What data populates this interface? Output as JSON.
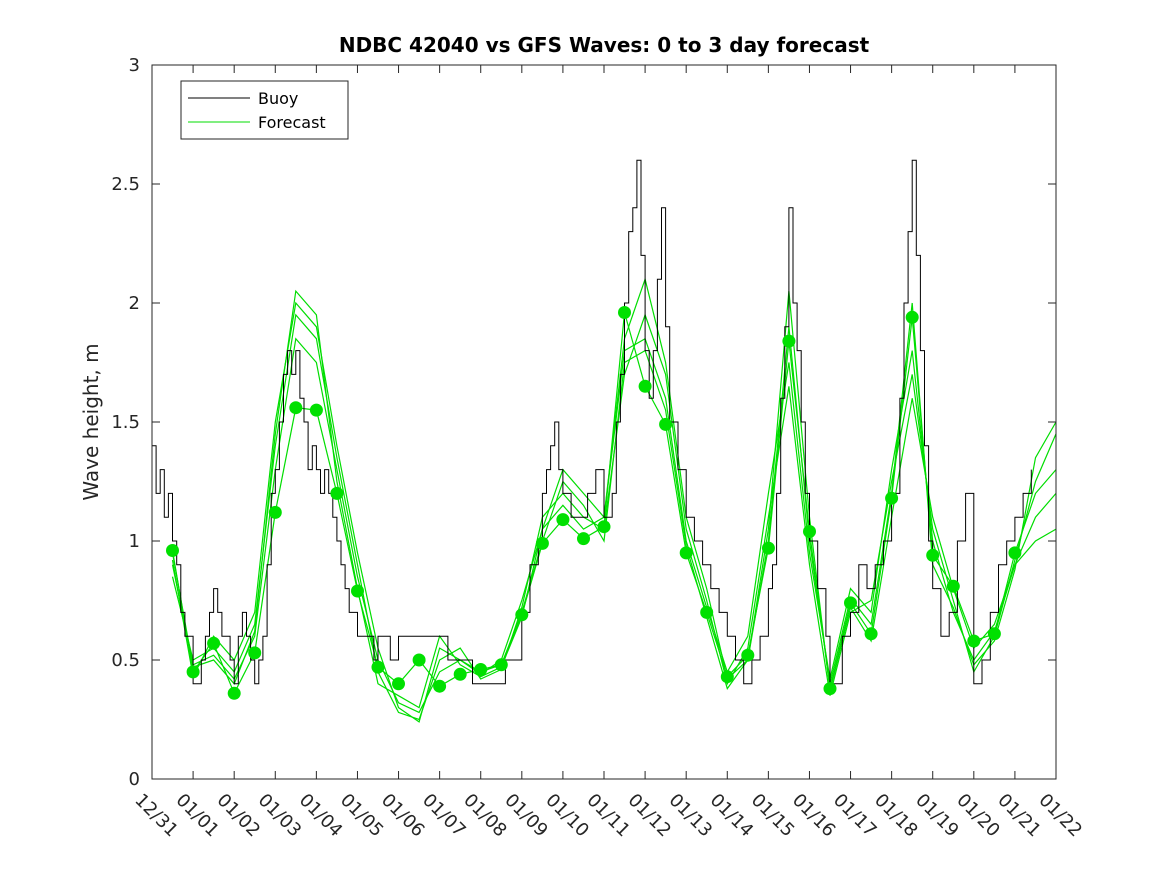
{
  "chart_data": {
    "type": "line",
    "title": "NDBC 42040 vs GFS Waves: 0 to 3 day forecast",
    "xlabel": "",
    "ylabel": "Wave height, m",
    "xlim": [
      0,
      22
    ],
    "ylim": [
      0,
      3
    ],
    "x_tick_labels": [
      "12/31",
      "01/01",
      "01/02",
      "01/03",
      "01/04",
      "01/05",
      "01/06",
      "01/07",
      "01/08",
      "01/09",
      "01/10",
      "01/11",
      "01/12",
      "01/13",
      "01/14",
      "01/15",
      "01/16",
      "01/17",
      "01/18",
      "01/19",
      "01/20",
      "01/21",
      "01/22"
    ],
    "y_ticks": [
      0,
      0.5,
      1,
      1.5,
      2,
      2.5,
      3
    ],
    "y_tick_labels": [
      "0",
      "0.5",
      "1",
      "1.5",
      "2",
      "2.5",
      "3"
    ],
    "legend": {
      "position": "top-left",
      "entries": [
        {
          "name": "Buoy",
          "color": "#000000"
        },
        {
          "name": "Forecast",
          "color": "#00dd00"
        }
      ]
    },
    "buoy_series": {
      "name": "Buoy",
      "color": "#000000",
      "x": [
        0,
        0.1,
        0.2,
        0.3,
        0.4,
        0.5,
        0.6,
        0.7,
        0.8,
        1.0,
        1.1,
        1.2,
        1.3,
        1.4,
        1.5,
        1.6,
        1.7,
        1.8,
        1.9,
        2.0,
        2.1,
        2.2,
        2.3,
        2.4,
        2.5,
        2.6,
        2.7,
        2.8,
        2.9,
        3.0,
        3.1,
        3.2,
        3.3,
        3.4,
        3.5,
        3.6,
        3.7,
        3.8,
        3.9,
        4.0,
        4.1,
        4.2,
        4.3,
        4.4,
        4.5,
        4.6,
        4.7,
        4.8,
        4.9,
        5.0,
        5.2,
        5.4,
        5.5,
        5.8,
        6.0,
        6.2,
        6.4,
        6.6,
        6.8,
        7.0,
        7.2,
        7.4,
        7.6,
        7.8,
        8.0,
        8.2,
        8.4,
        8.6,
        8.8,
        9.0,
        9.2,
        9.4,
        9.5,
        9.6,
        9.7,
        9.8,
        9.9,
        10.0,
        10.2,
        10.4,
        10.6,
        10.8,
        11.0,
        11.2,
        11.3,
        11.4,
        11.5,
        11.6,
        11.7,
        11.8,
        11.9,
        12.0,
        12.1,
        12.2,
        12.3,
        12.4,
        12.5,
        12.6,
        12.8,
        13.0,
        13.2,
        13.4,
        13.6,
        13.8,
        14.0,
        14.2,
        14.4,
        14.6,
        14.8,
        15.0,
        15.1,
        15.2,
        15.3,
        15.4,
        15.5,
        15.6,
        15.7,
        15.8,
        15.9,
        16.0,
        16.2,
        16.4,
        16.5,
        16.6,
        16.8,
        17.0,
        17.2,
        17.4,
        17.6,
        17.8,
        18.0,
        18.2,
        18.3,
        18.4,
        18.5,
        18.6,
        18.7,
        18.8,
        18.9,
        19.0,
        19.2,
        19.4,
        19.6,
        19.8,
        20.0,
        20.2,
        20.4,
        20.6,
        20.8,
        21.0,
        21.2,
        21.4
      ],
      "values": [
        1.4,
        1.2,
        1.3,
        1.1,
        1.2,
        1.0,
        0.9,
        0.7,
        0.6,
        0.4,
        0.4,
        0.5,
        0.6,
        0.7,
        0.8,
        0.7,
        0.6,
        0.6,
        0.5,
        0.4,
        0.6,
        0.7,
        0.6,
        0.5,
        0.4,
        0.5,
        0.6,
        0.9,
        1.2,
        1.3,
        1.5,
        1.7,
        1.8,
        1.7,
        1.8,
        1.6,
        1.5,
        1.3,
        1.4,
        1.3,
        1.2,
        1.3,
        1.2,
        1.1,
        1.0,
        0.9,
        0.8,
        0.7,
        0.7,
        0.6,
        0.6,
        0.5,
        0.6,
        0.5,
        0.6,
        0.6,
        0.6,
        0.6,
        0.6,
        0.6,
        0.5,
        0.5,
        0.5,
        0.4,
        0.4,
        0.4,
        0.4,
        0.5,
        0.5,
        0.7,
        0.9,
        1.0,
        1.2,
        1.3,
        1.4,
        1.5,
        1.3,
        1.2,
        1.1,
        1.1,
        1.2,
        1.3,
        1.1,
        1.2,
        1.5,
        1.7,
        2.0,
        2.3,
        2.4,
        2.6,
        2.2,
        1.8,
        1.6,
        1.8,
        2.1,
        2.4,
        1.9,
        1.5,
        1.3,
        1.1,
        1.0,
        0.9,
        0.8,
        0.7,
        0.6,
        0.5,
        0.4,
        0.5,
        0.6,
        0.8,
        0.9,
        1.2,
        1.6,
        1.9,
        2.4,
        2.0,
        1.8,
        1.5,
        1.2,
        1.0,
        0.8,
        0.6,
        0.4,
        0.4,
        0.6,
        0.7,
        0.9,
        0.8,
        0.9,
        1.0,
        1.2,
        1.6,
        2.0,
        2.3,
        2.6,
        2.2,
        1.8,
        1.4,
        1.0,
        0.8,
        0.6,
        0.7,
        1.0,
        1.2,
        0.4,
        0.5,
        0.7,
        0.9,
        1.0,
        1.1,
        1.2,
        1.3
      ]
    },
    "forecast_points": {
      "name": "Forecast",
      "color": "#00e000",
      "x": [
        0.5,
        1.0,
        1.5,
        2.0,
        2.5,
        3.0,
        3.5,
        4.0,
        4.5,
        5.0,
        5.5,
        6.0,
        6.5,
        7.0,
        7.5,
        8.0,
        8.5,
        9.0,
        9.5,
        10.0,
        10.5,
        11.0,
        11.5,
        12.0,
        12.5,
        13.0,
        13.5,
        14.0,
        14.5,
        15.0,
        15.5,
        16.0,
        16.5,
        17.0,
        17.5,
        18.0,
        18.5,
        19.0,
        19.5,
        20.0,
        20.5,
        21.0
      ],
      "values": [
        0.96,
        0.45,
        0.57,
        0.36,
        0.53,
        1.12,
        1.56,
        1.55,
        1.2,
        0.79,
        0.47,
        0.4,
        0.5,
        0.39,
        0.44,
        0.46,
        0.48,
        0.69,
        0.99,
        1.09,
        1.01,
        1.06,
        1.96,
        1.65,
        1.49,
        0.95,
        0.7,
        0.43,
        0.52,
        0.97,
        1.84,
        1.04,
        0.38,
        0.74,
        0.61,
        1.18,
        1.94,
        0.94,
        0.81,
        0.58,
        0.61,
        0.95
      ]
    },
    "forecast_runs": [
      {
        "name": "Forecast run 1",
        "x": [
          0.5,
          1.0,
          1.5,
          2.0,
          2.5,
          3.0,
          3.5,
          4.0,
          4.5,
          5.0,
          5.5,
          6.0,
          6.5,
          7.0,
          7.5,
          8.0,
          8.5,
          9.0,
          9.5,
          10.0,
          10.5,
          11.0,
          11.5,
          12.0,
          12.5,
          13.0,
          13.5,
          14.0,
          14.5,
          15.0,
          15.5,
          16.0,
          16.5,
          17.0,
          17.5,
          18.0,
          18.5,
          19.0,
          19.5,
          20.0,
          20.5,
          21.0,
          21.5,
          22.0
        ],
        "values": [
          0.96,
          0.45,
          0.57,
          0.36,
          0.53,
          1.12,
          1.56,
          1.55,
          1.2,
          0.79,
          0.47,
          0.4,
          0.5,
          0.39,
          0.44,
          0.46,
          0.48,
          0.69,
          0.99,
          1.09,
          1.01,
          1.06,
          1.96,
          1.65,
          1.49,
          0.95,
          0.7,
          0.43,
          0.52,
          0.97,
          1.84,
          1.04,
          0.38,
          0.74,
          0.61,
          1.18,
          1.94,
          0.94,
          0.81,
          0.58,
          0.61,
          0.95,
          1.2,
          1.3
        ]
      },
      {
        "name": "Forecast run 2",
        "x": [
          0.5,
          1.0,
          1.5,
          2.0,
          2.5,
          3.0,
          3.5,
          4.0,
          4.5,
          5.0,
          5.5,
          6.0,
          6.5,
          7.0,
          7.5,
          8.0,
          8.5,
          9.0,
          9.5,
          10.0,
          10.5,
          11.0,
          11.5,
          12.0,
          12.5,
          13.0,
          13.5,
          14.0,
          14.5,
          15.0,
          15.5,
          16.0,
          16.5,
          17.0,
          17.5,
          18.0,
          18.5,
          19.0,
          19.5,
          20.0,
          20.5,
          21.0,
          21.5,
          22.0
        ],
        "values": [
          0.9,
          0.48,
          0.52,
          0.42,
          0.6,
          1.3,
          1.85,
          1.75,
          1.3,
          0.85,
          0.5,
          0.32,
          0.28,
          0.45,
          0.5,
          0.44,
          0.5,
          0.75,
          1.05,
          1.15,
          1.05,
          1.1,
          1.8,
          1.85,
          1.6,
          1.0,
          0.72,
          0.45,
          0.6,
          1.2,
          1.75,
          0.95,
          0.42,
          0.8,
          0.7,
          1.3,
          1.8,
          1.0,
          0.7,
          0.5,
          0.62,
          0.9,
          1.1,
          1.2
        ]
      },
      {
        "name": "Forecast run 3",
        "x": [
          0.5,
          1.0,
          1.5,
          2.0,
          2.5,
          3.0,
          3.5,
          4.0,
          4.5,
          5.0,
          5.5,
          6.0,
          6.5,
          7.0,
          7.5,
          8.0,
          8.5,
          9.0,
          9.5,
          10.0,
          10.5,
          11.0,
          11.5,
          12.0,
          12.5,
          13.0,
          13.5,
          14.0,
          14.5,
          15.0,
          15.5,
          16.0,
          16.5,
          17.0,
          17.5,
          18.0,
          18.5,
          19.0,
          19.5,
          20.0,
          20.5,
          21.0,
          21.5,
          22.0
        ],
        "values": [
          0.85,
          0.5,
          0.55,
          0.45,
          0.65,
          1.4,
          1.95,
          1.85,
          1.35,
          0.9,
          0.45,
          0.28,
          0.25,
          0.5,
          0.55,
          0.42,
          0.46,
          0.72,
          1.1,
          1.2,
          1.1,
          1.05,
          1.7,
          1.95,
          1.7,
          1.05,
          0.75,
          0.4,
          0.55,
          1.1,
          1.65,
          0.9,
          0.35,
          0.7,
          0.75,
          1.25,
          1.7,
          1.05,
          0.75,
          0.45,
          0.6,
          0.92,
          1.25,
          1.45
        ]
      },
      {
        "name": "Forecast run 4",
        "x": [
          0.5,
          1.0,
          1.5,
          2.0,
          2.5,
          3.0,
          3.5,
          4.0,
          4.5,
          5.0,
          5.5,
          6.0,
          6.5,
          7.0,
          7.5,
          8.0,
          8.5,
          9.0,
          9.5,
          10.0,
          10.5,
          11.0,
          11.5,
          12.0,
          12.5,
          13.0,
          13.5,
          14.0,
          14.5,
          15.0,
          15.5,
          16.0,
          16.5,
          17.0,
          17.5,
          18.0,
          18.5,
          19.0,
          19.5,
          20.0,
          20.5,
          21.0,
          21.5,
          22.0
        ],
        "values": [
          0.92,
          0.43,
          0.6,
          0.5,
          0.7,
          1.5,
          2.0,
          1.9,
          1.4,
          0.95,
          0.55,
          0.3,
          0.24,
          0.55,
          0.5,
          0.45,
          0.48,
          0.7,
          1.0,
          1.25,
          1.15,
          1.0,
          1.75,
          1.8,
          1.55,
          0.98,
          0.68,
          0.38,
          0.5,
          1.0,
          1.9,
          1.0,
          0.4,
          0.76,
          0.65,
          1.2,
          2.0,
          0.9,
          0.72,
          0.48,
          0.58,
          0.88,
          1.35,
          1.5
        ]
      },
      {
        "name": "Forecast run 5",
        "x": [
          0.5,
          1.0,
          1.5,
          2.0,
          2.5,
          3.0,
          3.5,
          4.0,
          4.5,
          5.0,
          5.5,
          6.0,
          6.5,
          7.0,
          7.5,
          8.0,
          8.5,
          9.0,
          9.5,
          10.0,
          10.5,
          11.0,
          11.5,
          12.0,
          12.5,
          13.0,
          13.5,
          14.0,
          14.5,
          15.0,
          15.5,
          16.0,
          16.5,
          17.0,
          17.5,
          18.0,
          18.5,
          19.0,
          19.5,
          20.0,
          20.5,
          21.0,
          21.5,
          22.0
        ],
        "values": [
          0.95,
          0.47,
          0.5,
          0.4,
          0.62,
          1.45,
          2.05,
          1.95,
          1.25,
          0.8,
          0.4,
          0.35,
          0.3,
          0.6,
          0.48,
          0.43,
          0.47,
          0.68,
          1.05,
          1.3,
          1.2,
          1.1,
          1.85,
          2.1,
          1.75,
          1.1,
          0.8,
          0.42,
          0.5,
          1.05,
          2.05,
          1.1,
          0.37,
          0.72,
          0.58,
          1.1,
          1.6,
          1.1,
          0.8,
          0.55,
          0.65,
          0.9,
          1.0,
          1.05
        ]
      }
    ]
  }
}
